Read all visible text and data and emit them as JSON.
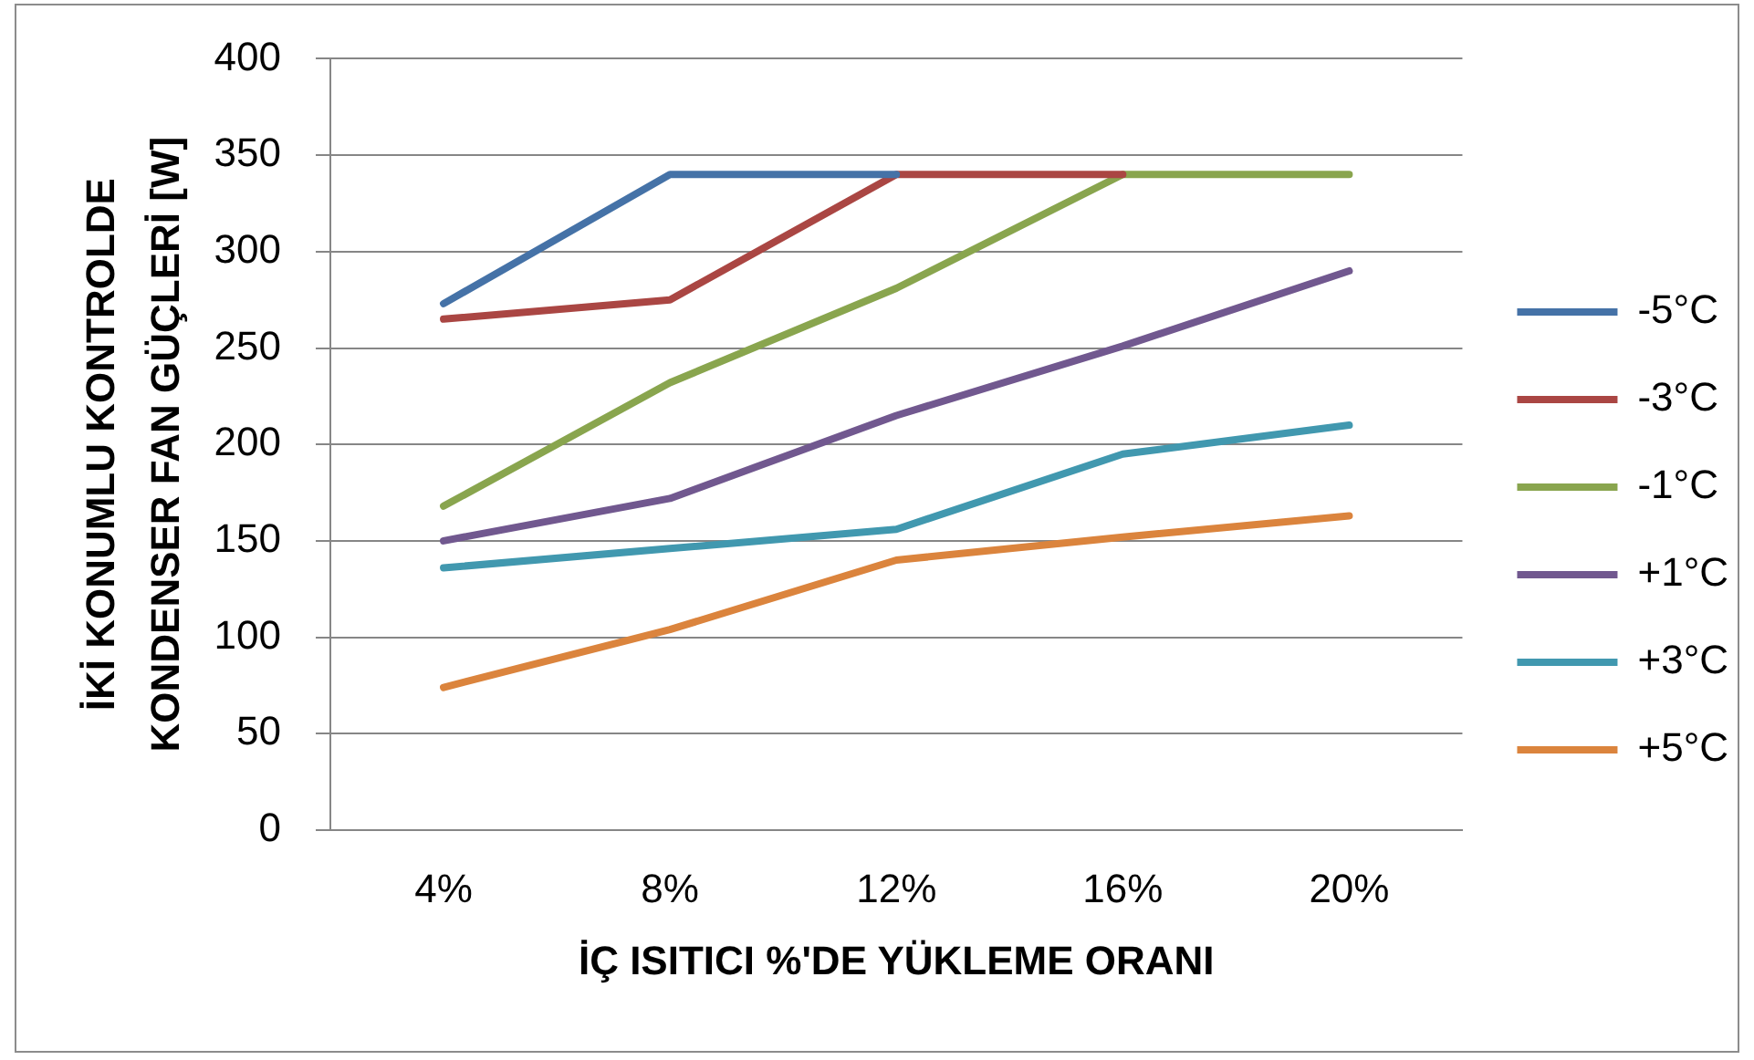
{
  "chart_data": {
    "type": "line",
    "xlabel": "İÇ ISITICI %'DE YÜKLEME ORANI",
    "ylabel": "İKİ KONUMLU KONTROLDE\nKONDENSER FAN GÜÇLERİ [W]",
    "categories": [
      "4%",
      "8%",
      "12%",
      "16%",
      "20%"
    ],
    "ylim": [
      0,
      400
    ],
    "yticks": [
      0,
      50,
      100,
      150,
      200,
      250,
      300,
      350,
      400
    ],
    "grid": "y",
    "legend": "right",
    "marker": "none",
    "line_style": "solid",
    "series": [
      {
        "name": "-5°C",
        "color": "#4572a7",
        "values": [
          273,
          340,
          340,
          null,
          null
        ]
      },
      {
        "name": "-3°C",
        "color": "#aa4643",
        "values": [
          265,
          275,
          340,
          340,
          null
        ]
      },
      {
        "name": "-1°C",
        "color": "#89a54e",
        "values": [
          168,
          232,
          281,
          340,
          340
        ]
      },
      {
        "name": "+1°C",
        "color": "#71588f",
        "values": [
          150,
          172,
          215,
          251,
          290
        ]
      },
      {
        "name": "+3°C",
        "color": "#4198af",
        "values": [
          136,
          146,
          156,
          195,
          210
        ]
      },
      {
        "name": "+5°C",
        "color": "#db843d",
        "values": [
          74,
          104,
          140,
          152,
          163
        ]
      }
    ]
  }
}
